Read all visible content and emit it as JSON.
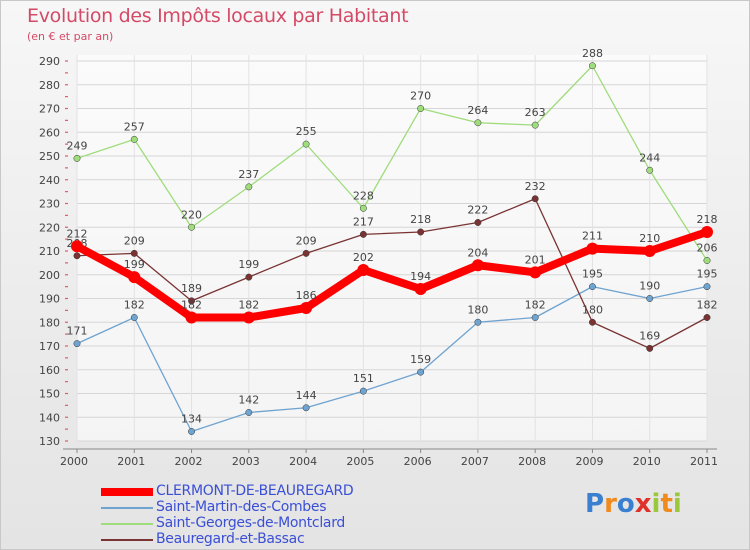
{
  "title": "Evolution des Impôts locaux par Habitant",
  "subtitle": "(en € et par an)",
  "logo_text": "Proxiti",
  "chart_data": {
    "type": "line",
    "title": "Evolution des Impôts locaux par Habitant",
    "subtitle": "(en € et par an)",
    "xlabel": "",
    "ylabel": "",
    "x": [
      2000,
      2001,
      2002,
      2003,
      2004,
      2005,
      2006,
      2007,
      2008,
      2009,
      2010,
      2011
    ],
    "ylim": [
      130,
      290
    ],
    "yticks": [
      130,
      140,
      150,
      160,
      170,
      180,
      190,
      200,
      210,
      220,
      230,
      240,
      250,
      260,
      270,
      280,
      290
    ],
    "grid": true,
    "legend_position": "bottom-left",
    "series": [
      {
        "name": "CLERMONT-DE-BEAUREGARD",
        "color": "#ff0000",
        "emphasis": true,
        "values": [
          212,
          199,
          182,
          182,
          186,
          202,
          194,
          204,
          201,
          211,
          210,
          218
        ]
      },
      {
        "name": "Saint-Martin-des-Combes",
        "color": "#6fa3d0",
        "values": [
          171,
          182,
          134,
          142,
          144,
          151,
          159,
          180,
          182,
          195,
          190,
          195
        ]
      },
      {
        "name": "Saint-Georges-de-Montclard",
        "color": "#9fdc7c",
        "values": [
          249,
          257,
          220,
          237,
          255,
          228,
          270,
          264,
          263,
          288,
          244,
          206
        ]
      },
      {
        "name": "Beauregard-et-Bassac",
        "color": "#7a3333",
        "values": [
          208,
          209,
          189,
          199,
          209,
          217,
          218,
          222,
          232,
          180,
          169,
          182
        ]
      }
    ]
  }
}
